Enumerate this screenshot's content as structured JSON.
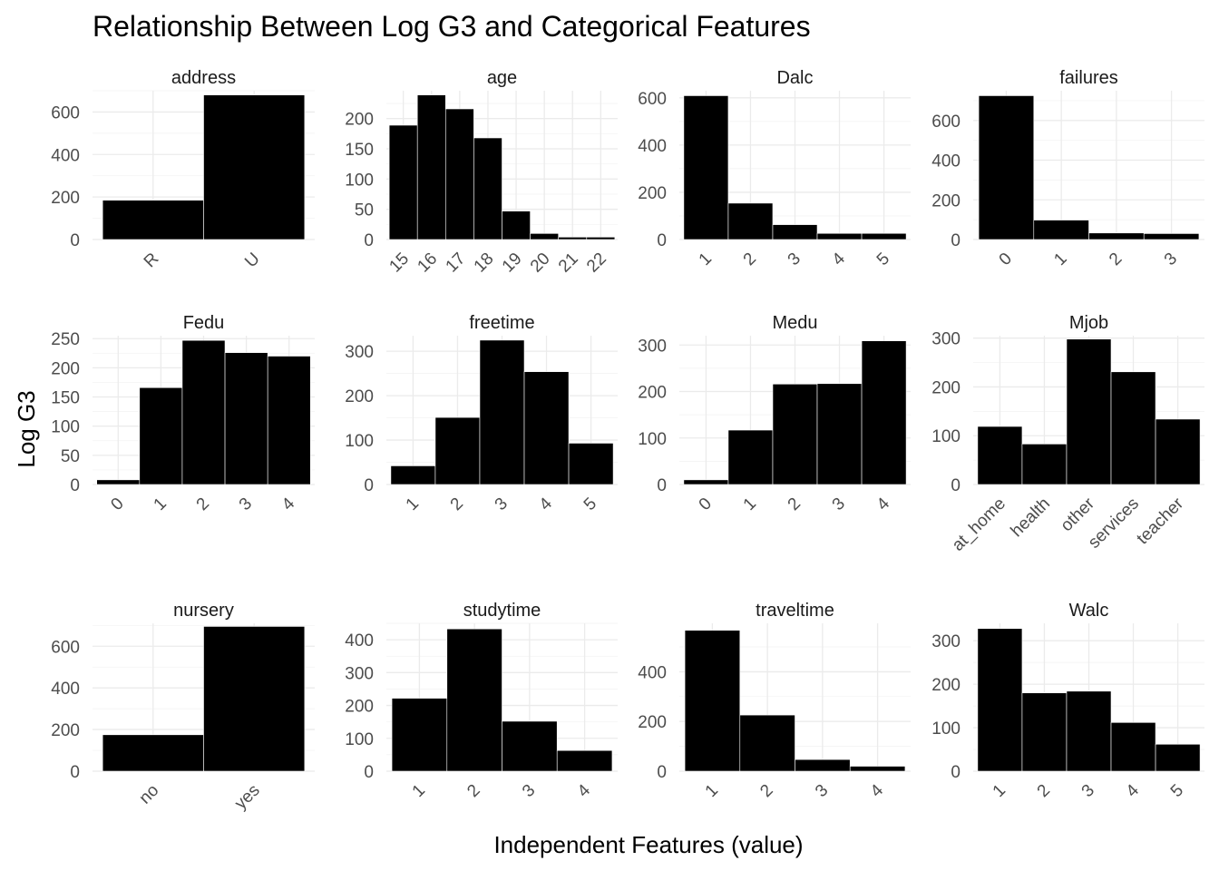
{
  "chart_data": {
    "type": "bar",
    "title": "Relationship Between Log G3 and Categorical Features",
    "xlabel": "Independent Features (value)",
    "ylabel": "Log G3",
    "grid": true,
    "panels": [
      {
        "name": "address",
        "categories": [
          "R",
          "U"
        ],
        "values": [
          185,
          680
        ],
        "yticks": [
          0,
          200,
          400,
          600
        ],
        "ymax": 700
      },
      {
        "name": "age",
        "categories": [
          "15",
          "16",
          "17",
          "18",
          "19",
          "20",
          "21",
          "22"
        ],
        "values": [
          189,
          239,
          216,
          168,
          47,
          10,
          4,
          4
        ],
        "yticks": [
          0,
          50,
          100,
          150,
          200
        ],
        "ymax": 246
      },
      {
        "name": "Dalc",
        "categories": [
          "1",
          "2",
          "3",
          "4",
          "5"
        ],
        "values": [
          609,
          154,
          63,
          26,
          26
        ],
        "yticks": [
          0,
          200,
          400,
          600
        ],
        "ymax": 630
      },
      {
        "name": "failures",
        "categories": [
          "0",
          "1",
          "2",
          "3"
        ],
        "values": [
          725,
          98,
          33,
          30
        ],
        "yticks": [
          0,
          200,
          400,
          600
        ],
        "ymax": 750
      },
      {
        "name": "Fedu",
        "categories": [
          "0",
          "1",
          "2",
          "3",
          "4"
        ],
        "values": [
          8,
          166,
          247,
          226,
          220
        ],
        "yticks": [
          0,
          50,
          100,
          150,
          200,
          250
        ],
        "ymax": 255
      },
      {
        "name": "freetime",
        "categories": [
          "1",
          "2",
          "3",
          "4",
          "5"
        ],
        "values": [
          42,
          151,
          325,
          254,
          93
        ],
        "yticks": [
          0,
          100,
          200,
          300
        ],
        "ymax": 335
      },
      {
        "name": "Medu",
        "categories": [
          "0",
          "1",
          "2",
          "3",
          "4"
        ],
        "values": [
          10,
          117,
          216,
          217,
          309
        ],
        "yticks": [
          0,
          100,
          200,
          300
        ],
        "ymax": 320
      },
      {
        "name": "Mjob",
        "categories": [
          "at_home",
          "health",
          "other",
          "services",
          "teacher"
        ],
        "values": [
          119,
          83,
          298,
          231,
          134
        ],
        "yticks": [
          0,
          100,
          200,
          300
        ],
        "ymax": 305
      },
      {
        "name": "nursery",
        "categories": [
          "no",
          "yes"
        ],
        "values": [
          175,
          695
        ],
        "yticks": [
          0,
          200,
          400,
          600
        ],
        "ymax": 710
      },
      {
        "name": "studytime",
        "categories": [
          "1",
          "2",
          "3",
          "4"
        ],
        "values": [
          222,
          433,
          152,
          63
        ],
        "yticks": [
          0,
          100,
          200,
          300,
          400
        ],
        "ymax": 450
      },
      {
        "name": "traveltime",
        "categories": [
          "1",
          "2",
          "3",
          "4"
        ],
        "values": [
          567,
          226,
          47,
          20
        ],
        "yticks": [
          0,
          200,
          400
        ],
        "ymax": 595
      },
      {
        "name": "Walc",
        "categories": [
          "1",
          "2",
          "3",
          "4",
          "5"
        ],
        "values": [
          328,
          180,
          184,
          112,
          62
        ],
        "yticks": [
          0,
          100,
          200,
          300
        ],
        "ymax": 340
      }
    ]
  }
}
